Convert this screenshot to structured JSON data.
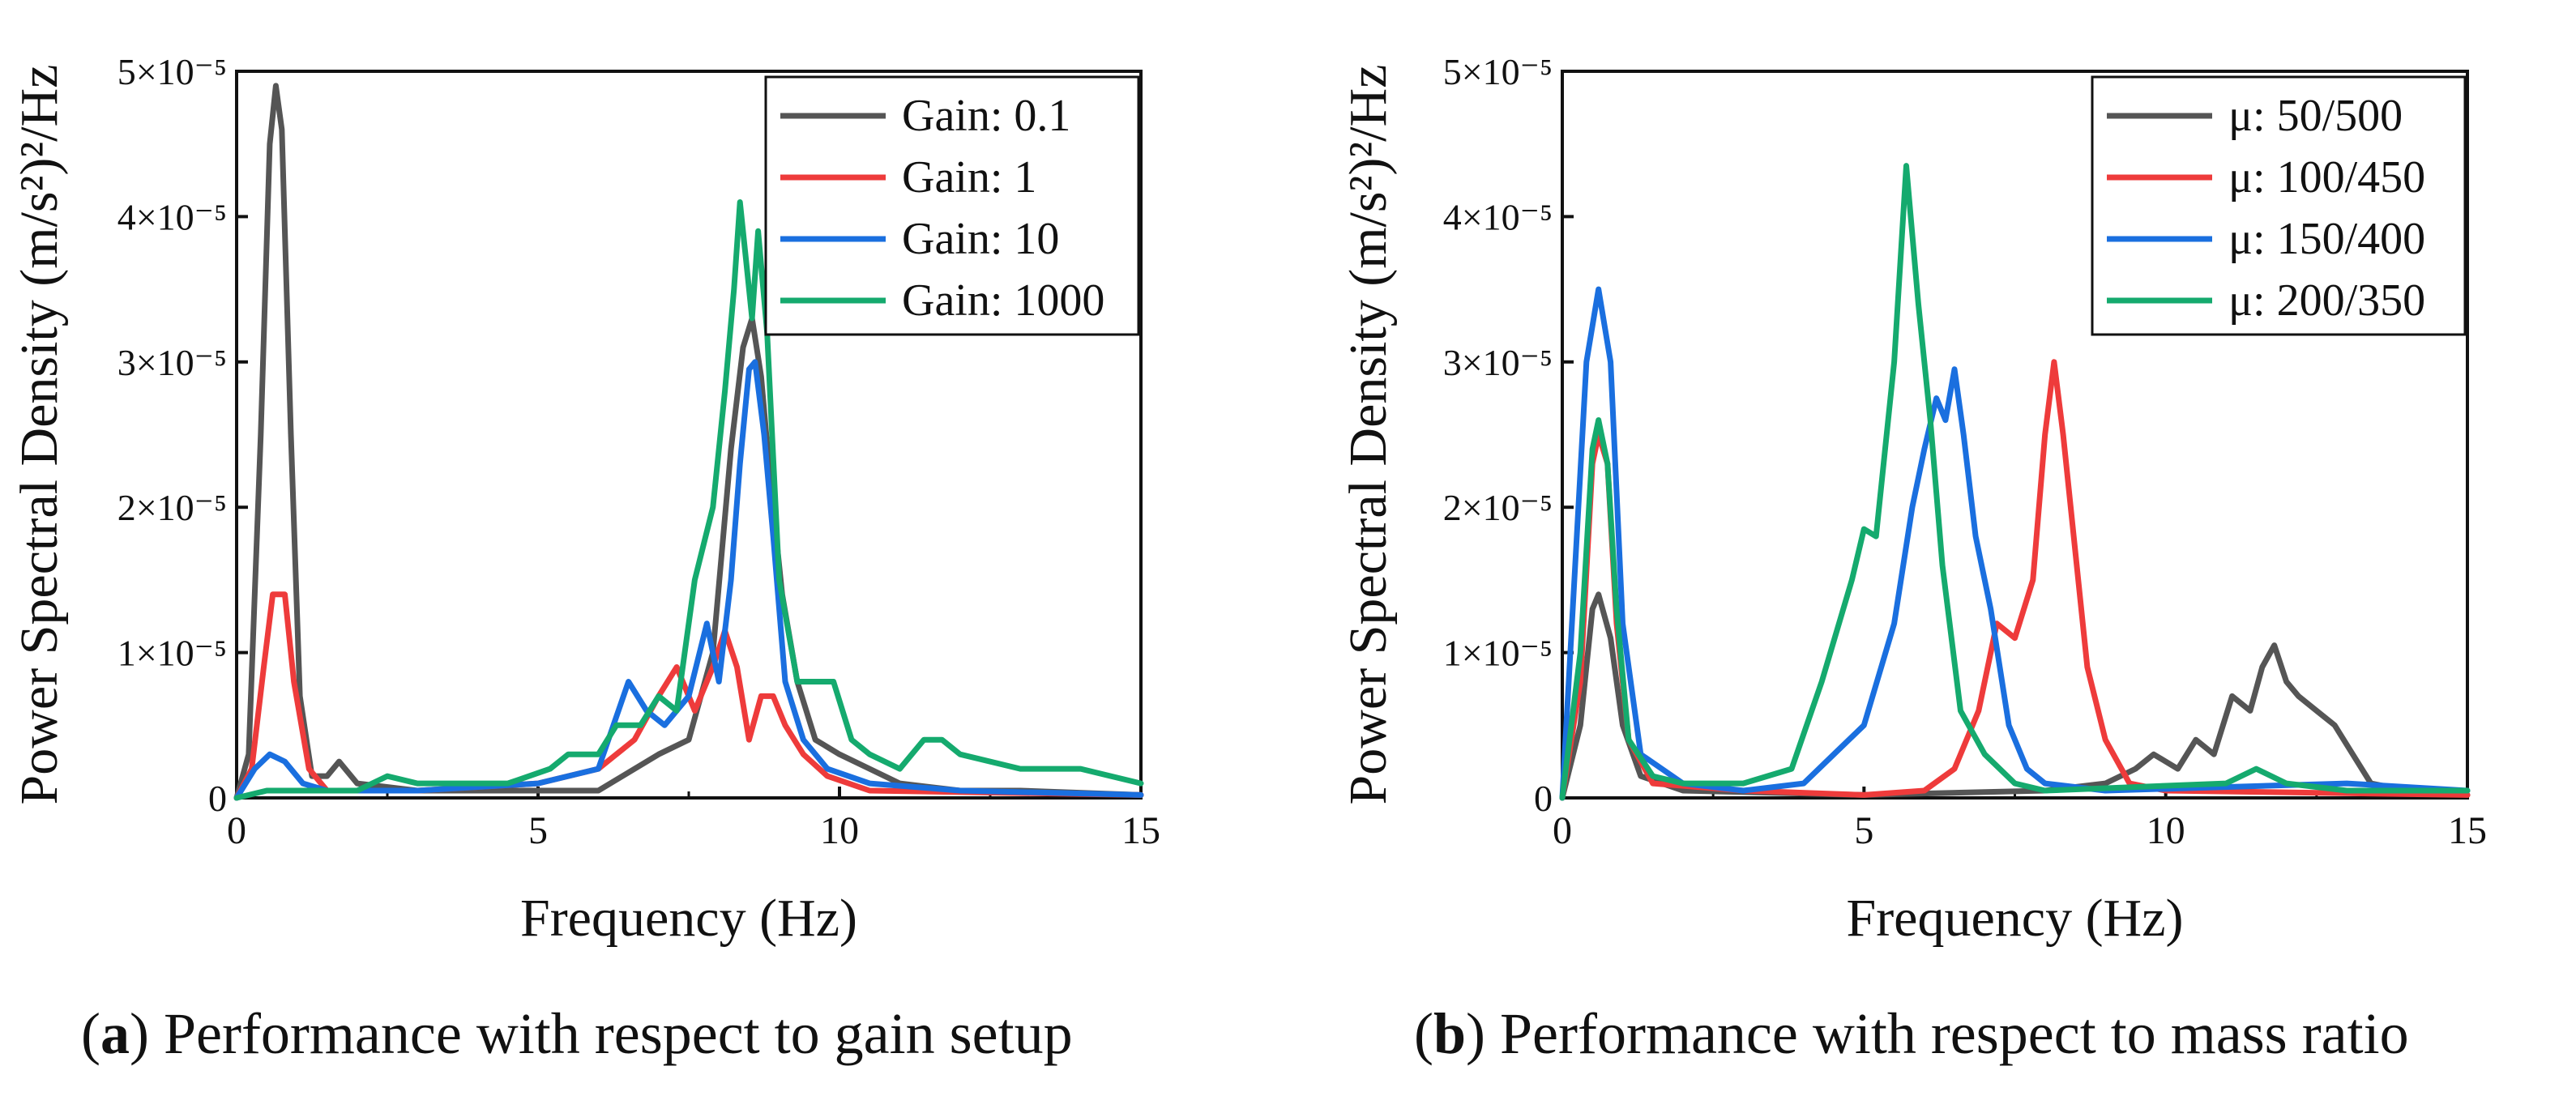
{
  "colors": {
    "black": "#555555",
    "red": "#ee3b3b",
    "blue": "#1a6fdf",
    "green": "#15aa6e"
  },
  "chart_data": [
    {
      "type": "line",
      "panel": "a",
      "caption_letter": "a",
      "caption_text": "Performance with respect to gain setup",
      "xlabel": "Frequency (Hz)",
      "ylabel": "Power Spectral Density (m/s²)²/Hz",
      "xlim": [
        0,
        15
      ],
      "ylim": [
        0,
        5e-05
      ],
      "xticks": [
        0,
        5,
        10,
        15
      ],
      "yticks": [
        {
          "v": 0,
          "label": "0"
        },
        {
          "v": 1e-05,
          "label": "1×10⁻⁵"
        },
        {
          "v": 2e-05,
          "label": "2×10⁻⁵"
        },
        {
          "v": 3e-05,
          "label": "3×10⁻⁵"
        },
        {
          "v": 4e-05,
          "label": "4×10⁻⁵"
        },
        {
          "v": 5e-05,
          "label": "5×10⁻⁵"
        }
      ],
      "legend_position": "top-right",
      "series": [
        {
          "name": "Gain: 0.1",
          "color": "#555555",
          "points": [
            [
              0,
              0
            ],
            [
              0.2,
              0.3
            ],
            [
              0.4,
              2.5
            ],
            [
              0.55,
              4.5
            ],
            [
              0.65,
              4.9
            ],
            [
              0.75,
              4.6
            ],
            [
              0.9,
              2.5
            ],
            [
              1.05,
              0.7
            ],
            [
              1.25,
              0.15
            ],
            [
              1.5,
              0.15
            ],
            [
              1.7,
              0.25
            ],
            [
              2.0,
              0.1
            ],
            [
              3,
              0.05
            ],
            [
              5,
              0.05
            ],
            [
              6,
              0.05
            ],
            [
              7,
              0.3
            ],
            [
              7.5,
              0.4
            ],
            [
              7.9,
              1.0
            ],
            [
              8.2,
              2.4
            ],
            [
              8.4,
              3.1
            ],
            [
              8.55,
              3.3
            ],
            [
              8.7,
              2.9
            ],
            [
              8.85,
              2.2
            ],
            [
              9.05,
              1.4
            ],
            [
              9.3,
              0.8
            ],
            [
              9.6,
              0.4
            ],
            [
              10,
              0.3
            ],
            [
              10.5,
              0.2
            ],
            [
              11,
              0.1
            ],
            [
              12,
              0.05
            ],
            [
              13,
              0.05
            ],
            [
              15,
              0.02
            ]
          ]
        },
        {
          "name": "Gain: 1",
          "color": "#ee3b3b",
          "points": [
            [
              0,
              0
            ],
            [
              0.25,
              0.2
            ],
            [
              0.45,
              0.9
            ],
            [
              0.6,
              1.4
            ],
            [
              0.8,
              1.4
            ],
            [
              0.95,
              0.8
            ],
            [
              1.2,
              0.2
            ],
            [
              1.5,
              0.05
            ],
            [
              3,
              0.05
            ],
            [
              5,
              0.1
            ],
            [
              6,
              0.2
            ],
            [
              6.6,
              0.4
            ],
            [
              7.0,
              0.7
            ],
            [
              7.3,
              0.9
            ],
            [
              7.6,
              0.6
            ],
            [
              7.9,
              0.9
            ],
            [
              8.1,
              1.15
            ],
            [
              8.3,
              0.9
            ],
            [
              8.5,
              0.4
            ],
            [
              8.7,
              0.7
            ],
            [
              8.9,
              0.7
            ],
            [
              9.1,
              0.5
            ],
            [
              9.4,
              0.3
            ],
            [
              9.8,
              0.15
            ],
            [
              10.5,
              0.05
            ],
            [
              15,
              0.02
            ]
          ]
        },
        {
          "name": "Gain: 10",
          "color": "#1a6fdf",
          "points": [
            [
              0,
              0
            ],
            [
              0.3,
              0.2
            ],
            [
              0.55,
              0.3
            ],
            [
              0.8,
              0.25
            ],
            [
              1.1,
              0.1
            ],
            [
              1.5,
              0.05
            ],
            [
              3,
              0.05
            ],
            [
              5,
              0.1
            ],
            [
              6,
              0.2
            ],
            [
              6.5,
              0.8
            ],
            [
              6.8,
              0.6
            ],
            [
              7.1,
              0.5
            ],
            [
              7.5,
              0.7
            ],
            [
              7.8,
              1.2
            ],
            [
              8.0,
              0.8
            ],
            [
              8.2,
              1.5
            ],
            [
              8.35,
              2.3
            ],
            [
              8.5,
              2.95
            ],
            [
              8.6,
              3.0
            ],
            [
              8.75,
              2.5
            ],
            [
              8.9,
              1.8
            ],
            [
              9.1,
              0.8
            ],
            [
              9.4,
              0.4
            ],
            [
              9.8,
              0.2
            ],
            [
              10.5,
              0.1
            ],
            [
              12,
              0.05
            ],
            [
              15,
              0.02
            ]
          ]
        },
        {
          "name": "Gain: 1000",
          "color": "#15aa6e",
          "points": [
            [
              0,
              0
            ],
            [
              0.5,
              0.05
            ],
            [
              1,
              0.05
            ],
            [
              2,
              0.05
            ],
            [
              2.5,
              0.15
            ],
            [
              3,
              0.1
            ],
            [
              4,
              0.1
            ],
            [
              4.5,
              0.1
            ],
            [
              5.2,
              0.2
            ],
            [
              5.5,
              0.3
            ],
            [
              6,
              0.3
            ],
            [
              6.3,
              0.5
            ],
            [
              6.7,
              0.5
            ],
            [
              7.0,
              0.7
            ],
            [
              7.3,
              0.6
            ],
            [
              7.6,
              1.5
            ],
            [
              7.9,
              2.0
            ],
            [
              8.1,
              2.8
            ],
            [
              8.25,
              3.5
            ],
            [
              8.35,
              4.1
            ],
            [
              8.45,
              3.7
            ],
            [
              8.55,
              3.3
            ],
            [
              8.65,
              3.9
            ],
            [
              8.8,
              3.2
            ],
            [
              9.0,
              1.5
            ],
            [
              9.3,
              0.8
            ],
            [
              9.6,
              0.8
            ],
            [
              9.9,
              0.8
            ],
            [
              10.2,
              0.4
            ],
            [
              10.5,
              0.3
            ],
            [
              11,
              0.2
            ],
            [
              11.4,
              0.4
            ],
            [
              11.7,
              0.4
            ],
            [
              12,
              0.3
            ],
            [
              13,
              0.2
            ],
            [
              14,
              0.2
            ],
            [
              14.5,
              0.15
            ],
            [
              15,
              0.1
            ]
          ]
        }
      ]
    },
    {
      "type": "line",
      "panel": "b",
      "caption_letter": "b",
      "caption_text": "Performance with respect to mass ratio",
      "xlabel": "Frequency (Hz)",
      "ylabel": "Power Spectral Density (m/s²)²/Hz",
      "xlim": [
        0,
        15
      ],
      "ylim": [
        0,
        5e-05
      ],
      "xticks": [
        0,
        5,
        10,
        15
      ],
      "yticks": [
        {
          "v": 0,
          "label": "0"
        },
        {
          "v": 1e-05,
          "label": "1×10⁻⁵"
        },
        {
          "v": 2e-05,
          "label": "2×10⁻⁵"
        },
        {
          "v": 3e-05,
          "label": "3×10⁻⁵"
        },
        {
          "v": 4e-05,
          "label": "4×10⁻⁵"
        },
        {
          "v": 5e-05,
          "label": "5×10⁻⁵"
        }
      ],
      "legend_position": "top-right",
      "series": [
        {
          "name": "μ: 50/500",
          "color": "#555555",
          "points": [
            [
              0,
              0
            ],
            [
              0.3,
              0.5
            ],
            [
              0.5,
              1.3
            ],
            [
              0.6,
              1.4
            ],
            [
              0.8,
              1.1
            ],
            [
              1.0,
              0.5
            ],
            [
              1.3,
              0.15
            ],
            [
              2,
              0.05
            ],
            [
              5,
              0.02
            ],
            [
              8,
              0.05
            ],
            [
              9,
              0.1
            ],
            [
              9.5,
              0.2
            ],
            [
              9.8,
              0.3
            ],
            [
              10.2,
              0.2
            ],
            [
              10.5,
              0.4
            ],
            [
              10.8,
              0.3
            ],
            [
              11.1,
              0.7
            ],
            [
              11.4,
              0.6
            ],
            [
              11.6,
              0.9
            ],
            [
              11.8,
              1.05
            ],
            [
              12.0,
              0.8
            ],
            [
              12.2,
              0.7
            ],
            [
              12.5,
              0.6
            ],
            [
              12.8,
              0.5
            ],
            [
              13.1,
              0.3
            ],
            [
              13.4,
              0.1
            ],
            [
              14,
              0.05
            ],
            [
              15,
              0.02
            ]
          ]
        },
        {
          "name": "μ: 100/450",
          "color": "#ee3b3b",
          "points": [
            [
              0,
              0
            ],
            [
              0.3,
              0.8
            ],
            [
              0.5,
              2.3
            ],
            [
              0.6,
              2.5
            ],
            [
              0.75,
              2.3
            ],
            [
              0.9,
              1.2
            ],
            [
              1.1,
              0.4
            ],
            [
              1.5,
              0.1
            ],
            [
              3,
              0.05
            ],
            [
              5,
              0.02
            ],
            [
              6,
              0.05
            ],
            [
              6.5,
              0.2
            ],
            [
              6.9,
              0.6
            ],
            [
              7.2,
              1.2
            ],
            [
              7.5,
              1.1
            ],
            [
              7.8,
              1.5
            ],
            [
              8.0,
              2.5
            ],
            [
              8.15,
              3.0
            ],
            [
              8.3,
              2.5
            ],
            [
              8.5,
              1.7
            ],
            [
              8.7,
              0.9
            ],
            [
              9.0,
              0.4
            ],
            [
              9.4,
              0.1
            ],
            [
              10,
              0.05
            ],
            [
              15,
              0.02
            ]
          ]
        },
        {
          "name": "μ: 150/400",
          "color": "#1a6fdf",
          "points": [
            [
              0,
              0
            ],
            [
              0.2,
              1.5
            ],
            [
              0.4,
              3.0
            ],
            [
              0.6,
              3.5
            ],
            [
              0.8,
              3.0
            ],
            [
              1.0,
              1.2
            ],
            [
              1.3,
              0.3
            ],
            [
              2,
              0.1
            ],
            [
              3,
              0.05
            ],
            [
              4,
              0.1
            ],
            [
              4.5,
              0.3
            ],
            [
              5.0,
              0.5
            ],
            [
              5.5,
              1.2
            ],
            [
              5.8,
              2.0
            ],
            [
              6.0,
              2.4
            ],
            [
              6.2,
              2.75
            ],
            [
              6.35,
              2.6
            ],
            [
              6.5,
              2.95
            ],
            [
              6.65,
              2.5
            ],
            [
              6.85,
              1.8
            ],
            [
              7.1,
              1.3
            ],
            [
              7.4,
              0.5
            ],
            [
              7.7,
              0.2
            ],
            [
              8,
              0.1
            ],
            [
              9,
              0.05
            ],
            [
              13,
              0.1
            ],
            [
              15,
              0.05
            ]
          ]
        },
        {
          "name": "μ: 200/350",
          "color": "#15aa6e",
          "points": [
            [
              0,
              0
            ],
            [
              0.3,
              1.0
            ],
            [
              0.5,
              2.4
            ],
            [
              0.6,
              2.6
            ],
            [
              0.75,
              2.3
            ],
            [
              0.9,
              1.3
            ],
            [
              1.1,
              0.4
            ],
            [
              1.5,
              0.15
            ],
            [
              2,
              0.1
            ],
            [
              3,
              0.1
            ],
            [
              3.8,
              0.2
            ],
            [
              4.3,
              0.8
            ],
            [
              4.8,
              1.5
            ],
            [
              5.0,
              1.85
            ],
            [
              5.2,
              1.8
            ],
            [
              5.5,
              3.0
            ],
            [
              5.7,
              4.35
            ],
            [
              5.9,
              3.4
            ],
            [
              6.1,
              2.6
            ],
            [
              6.3,
              1.6
            ],
            [
              6.6,
              0.6
            ],
            [
              7.0,
              0.3
            ],
            [
              7.5,
              0.1
            ],
            [
              8,
              0.05
            ],
            [
              11,
              0.1
            ],
            [
              11.5,
              0.2
            ],
            [
              12,
              0.1
            ],
            [
              13,
              0.05
            ],
            [
              15,
              0.05
            ]
          ]
        }
      ]
    }
  ]
}
